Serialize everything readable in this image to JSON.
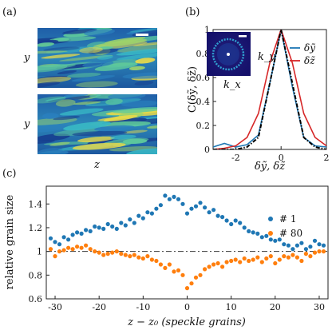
{
  "panels": {
    "a": {
      "label": "(a)",
      "ylabel_top": "y",
      "ylabel_bottom": "y",
      "xlabel": "z"
    },
    "b": {
      "label": "(b)"
    },
    "c": {
      "label": "(c)"
    }
  },
  "chart_data": [
    {
      "type": "line",
      "panel": "b",
      "ylabel": "C(δỹ, δz̃)",
      "xlabel": "δỹ, δz̃",
      "xlim": [
        -3,
        2
      ],
      "ylim": [
        0,
        1
      ],
      "xticks": [
        "-2",
        "0",
        "2"
      ],
      "yticks": [
        "0",
        "0.2",
        "0.4",
        "0.6",
        "0.8",
        "1"
      ],
      "inset_labels": {
        "x": "k_x",
        "y": "k_y"
      },
      "grid": false,
      "legend_position": "right",
      "series": [
        {
          "name": "δỹ",
          "color": "#1f77b4",
          "x": [
            -3,
            -2.5,
            -2,
            -1.5,
            -1,
            -0.5,
            0,
            0.5,
            1,
            1.5,
            2
          ],
          "y": [
            0.02,
            0.05,
            0.02,
            0.04,
            0.12,
            0.55,
            1.0,
            0.52,
            0.1,
            0.03,
            0.02
          ]
        },
        {
          "name": "δz̃",
          "color": "#d62728",
          "x": [
            -3,
            -2.5,
            -2,
            -1.5,
            -1,
            -0.5,
            0,
            0.5,
            1,
            1.5,
            2
          ],
          "y": [
            0.0,
            0.01,
            0.03,
            0.1,
            0.3,
            0.72,
            1.0,
            0.72,
            0.3,
            0.1,
            0.03
          ]
        },
        {
          "name": "",
          "color": "#000000",
          "dash": true,
          "x": [
            -3,
            -2.5,
            -2,
            -1.5,
            -1,
            -0.5,
            0,
            0.5,
            1,
            1.5,
            2
          ],
          "y": [
            0.0,
            0.0,
            0.0,
            0.02,
            0.1,
            0.55,
            1.0,
            0.55,
            0.1,
            0.02,
            0.0
          ]
        }
      ]
    },
    {
      "type": "scatter",
      "panel": "c",
      "ylabel": "relative grain size",
      "xlabel": "z − z₀ (speckle grains)",
      "xlim": [
        -32,
        32
      ],
      "ylim": [
        0.6,
        1.55
      ],
      "xticks": [
        "-30",
        "-20",
        "-10",
        "0",
        "10",
        "20",
        "30"
      ],
      "yticks": [
        "0.6",
        "0.8",
        "1",
        "1.2",
        "1.4"
      ],
      "reference_line": 1.0,
      "grid": false,
      "legend_position": "right",
      "series": [
        {
          "name": "# 1",
          "color": "#1f77b4",
          "x": [
            -31,
            -30,
            -29,
            -28,
            -27,
            -26,
            -25,
            -24,
            -23,
            -22,
            -21,
            -20,
            -19,
            -18,
            -17,
            -16,
            -15,
            -14,
            -13,
            -12,
            -11,
            -10,
            -9,
            -8,
            -7,
            -6,
            -5,
            -4,
            -3,
            -2,
            -1,
            0,
            1,
            2,
            3,
            4,
            5,
            6,
            7,
            8,
            9,
            10,
            11,
            12,
            13,
            14,
            15,
            16,
            17,
            18,
            19,
            20,
            21,
            22,
            23,
            24,
            25,
            26,
            27,
            28,
            29,
            30,
            31
          ],
          "y": [
            1.11,
            1.08,
            1.06,
            1.12,
            1.1,
            1.14,
            1.16,
            1.15,
            1.18,
            1.17,
            1.21,
            1.2,
            1.19,
            1.23,
            1.21,
            1.19,
            1.24,
            1.22,
            1.27,
            1.24,
            1.3,
            1.28,
            1.33,
            1.32,
            1.36,
            1.39,
            1.47,
            1.44,
            1.46,
            1.44,
            1.4,
            1.32,
            1.36,
            1.38,
            1.41,
            1.37,
            1.33,
            1.35,
            1.3,
            1.29,
            1.26,
            1.23,
            1.26,
            1.24,
            1.2,
            1.17,
            1.16,
            1.15,
            1.12,
            1.13,
            1.1,
            1.09,
            1.1,
            1.06,
            1.05,
            1.02,
            1.05,
            1.07,
            1.02,
            1.04,
            1.09,
            1.06,
            1.05
          ]
        },
        {
          "name": "# 80",
          "color": "#ff7f0e",
          "x": [
            -31,
            -30,
            -29,
            -28,
            -27,
            -26,
            -25,
            -24,
            -23,
            -22,
            -21,
            -20,
            -19,
            -18,
            -17,
            -16,
            -15,
            -14,
            -13,
            -12,
            -11,
            -10,
            -9,
            -8,
            -7,
            -6,
            -5,
            -4,
            -3,
            -2,
            -1,
            0,
            1,
            2,
            3,
            4,
            5,
            6,
            7,
            8,
            9,
            10,
            11,
            12,
            13,
            14,
            15,
            16,
            17,
            18,
            19,
            20,
            21,
            22,
            23,
            24,
            25,
            26,
            27,
            28,
            29,
            30,
            31
          ],
          "y": [
            1.02,
            0.96,
            1.0,
            1.01,
            1.03,
            1.02,
            1.04,
            1.03,
            1.05,
            1.02,
            1.0,
            0.99,
            0.97,
            0.98,
            0.99,
            1.0,
            0.98,
            0.97,
            0.96,
            0.97,
            0.95,
            0.94,
            0.96,
            0.93,
            0.92,
            0.89,
            0.86,
            0.89,
            0.83,
            0.84,
            0.8,
            0.69,
            0.73,
            0.78,
            0.8,
            0.85,
            0.87,
            0.89,
            0.9,
            0.87,
            0.91,
            0.92,
            0.93,
            0.91,
            0.94,
            0.92,
            0.93,
            0.95,
            0.91,
            0.94,
            0.96,
            0.9,
            0.93,
            0.96,
            0.95,
            0.97,
            0.95,
            0.92,
            0.98,
            0.96,
            0.99,
            1.0,
            1.0
          ]
        }
      ]
    }
  ]
}
